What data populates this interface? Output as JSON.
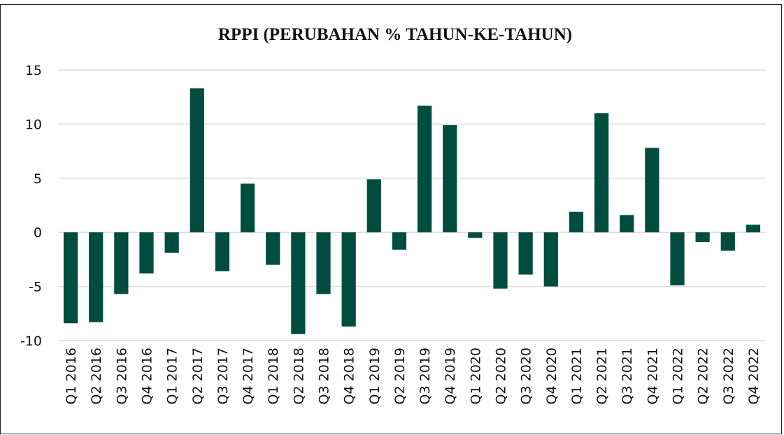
{
  "chart_data": {
    "type": "bar",
    "title": "RPPI (PERUBAHAN % TAHUN-KE-TAHUN)",
    "categories": [
      "Q1 2016",
      "Q2 2016",
      "Q3 2016",
      "Q4 2016",
      "Q1 2017",
      "Q2 2017",
      "Q3 2017",
      "Q4 2017",
      "Q1 2018",
      "Q2 2018",
      "Q3 2018",
      "Q4 2018",
      "Q1 2019",
      "Q2 2019",
      "Q3 2019",
      "Q4 2019",
      "Q1 2020",
      "Q2 2020",
      "Q3 2020",
      "Q4 2020",
      "Q1 2021",
      "Q2 2021",
      "Q3 2021",
      "Q4 2021",
      "Q1 2022",
      "Q2 2022",
      "Q3 2022",
      "Q4 2022"
    ],
    "values": [
      -8.4,
      -8.3,
      -5.7,
      -3.8,
      -1.9,
      13.3,
      -3.6,
      4.5,
      -3.0,
      -9.4,
      -5.7,
      -8.7,
      4.9,
      -1.6,
      11.7,
      9.9,
      -0.5,
      -5.2,
      -3.9,
      -5.0,
      1.9,
      11.0,
      1.6,
      7.8,
      -4.9,
      -0.9,
      -1.7,
      0.7
    ],
    "color": "#004d40",
    "ylim": [
      -10,
      15
    ],
    "yticks": [
      -10,
      -5,
      0,
      5,
      10,
      15
    ],
    "grid": true
  }
}
